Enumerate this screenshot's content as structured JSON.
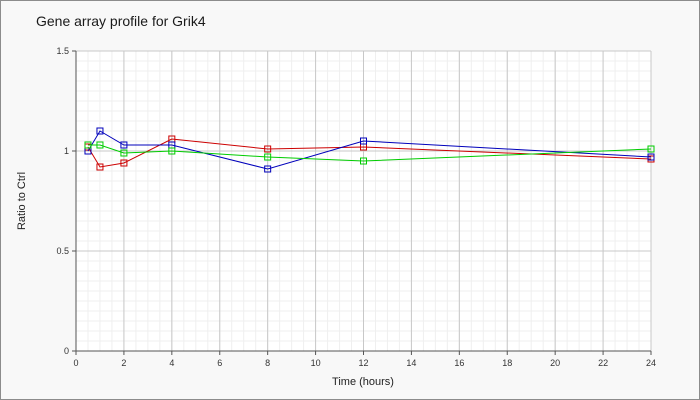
{
  "chart_data": {
    "type": "line",
    "title": "Gene array profile for Grik4",
    "xlabel": "Time (hours)",
    "ylabel": "Ratio to Ctrl",
    "xlim": [
      0,
      24
    ],
    "ylim": [
      0,
      1.5
    ],
    "x_ticks": [
      "0",
      "2",
      "4",
      "6",
      "8",
      "10",
      "12",
      "14",
      "16",
      "18",
      "20",
      "22",
      "24"
    ],
    "y_ticks": [
      "0",
      "0.5",
      "1",
      "1.5"
    ],
    "grid": true,
    "legend": "none",
    "marker": "open-square",
    "series": [
      {
        "color": "#cc0000",
        "x": [
          0.5,
          1,
          2,
          4,
          8,
          12,
          24
        ],
        "y": [
          1.02,
          0.92,
          0.94,
          1.06,
          1.01,
          1.02,
          0.96
        ]
      },
      {
        "color": "#0000bb",
        "x": [
          0.5,
          1,
          2,
          4,
          8,
          12,
          24
        ],
        "y": [
          1.0,
          1.1,
          1.03,
          1.03,
          0.91,
          1.05,
          0.97
        ]
      },
      {
        "color": "#00cc00",
        "x": [
          0.5,
          1,
          2,
          4,
          8,
          12,
          24
        ],
        "y": [
          1.03,
          1.03,
          0.99,
          1.0,
          0.97,
          0.95,
          1.01
        ]
      }
    ]
  }
}
